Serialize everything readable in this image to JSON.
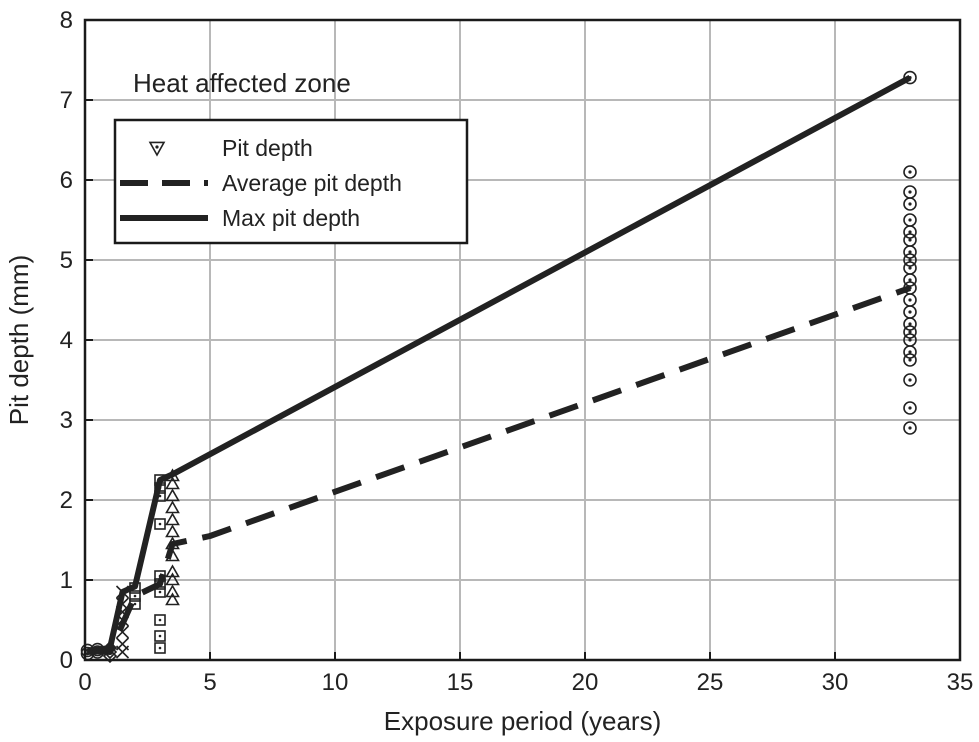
{
  "chart_data": {
    "type": "scatter",
    "title": "",
    "annotation": "Heat affected zone",
    "xlabel": "Exposure period (years)",
    "ylabel": "Pit depth (mm)",
    "xlim": [
      0,
      35
    ],
    "ylim": [
      0,
      8
    ],
    "xticks": [
      0,
      5,
      10,
      15,
      20,
      25,
      30,
      35
    ],
    "yticks": [
      0,
      1,
      2,
      3,
      4,
      5,
      6,
      7,
      8
    ],
    "grid": true,
    "legend_position": "upper-left",
    "legend": [
      {
        "label": "Pit depth",
        "style": "triangle-down-marker"
      },
      {
        "label": "Average pit depth",
        "style": "dashed-line"
      },
      {
        "label": "Max pit depth",
        "style": "solid-line"
      }
    ],
    "series": [
      {
        "name": "Pit depth",
        "kind": "scatter",
        "groups": [
          {
            "marker": "circle",
            "x": 0.1,
            "y": [
              0.08,
              0.12
            ]
          },
          {
            "marker": "circle",
            "x": 0.5,
            "y": [
              0.1,
              0.13
            ]
          },
          {
            "marker": "diamond",
            "x": 1.0,
            "y": [
              0.05,
              0.1,
              0.15
            ]
          },
          {
            "marker": "x",
            "x": 1.5,
            "y": [
              0.1,
              0.2,
              0.35,
              0.5,
              0.6,
              0.7,
              0.85
            ]
          },
          {
            "marker": "square",
            "x": 2.0,
            "y": [
              0.7,
              0.8,
              0.9
            ]
          },
          {
            "marker": "square",
            "x": 3.0,
            "y": [
              0.15,
              0.3,
              0.5,
              0.85,
              0.95,
              1.05,
              1.7,
              2.05,
              2.15,
              2.25
            ]
          },
          {
            "marker": "triangle",
            "x": 3.5,
            "y": [
              0.75,
              0.85,
              1.0,
              1.1,
              1.3,
              1.45,
              1.6,
              1.75,
              1.9,
              2.05,
              2.2,
              2.3
            ]
          },
          {
            "marker": "circle",
            "x": 33.0,
            "y": [
              2.9,
              3.15,
              3.5,
              3.75,
              3.85,
              4.0,
              4.1,
              4.2,
              4.35,
              4.5,
              4.65,
              4.75,
              4.9,
              5.0,
              5.1,
              5.25,
              5.35,
              5.5,
              5.7,
              5.85,
              6.1,
              7.28
            ]
          }
        ]
      },
      {
        "name": "Average pit depth",
        "kind": "line",
        "dash": "dashed",
        "x": [
          0.1,
          0.5,
          1.0,
          1.5,
          2.0,
          3.0,
          3.5,
          5.0,
          33.0
        ],
        "y": [
          0.1,
          0.11,
          0.1,
          0.45,
          0.8,
          0.95,
          1.45,
          1.55,
          4.65
        ]
      },
      {
        "name": "Max pit depth",
        "kind": "line",
        "dash": "solid",
        "x": [
          0.1,
          0.5,
          1.0,
          1.5,
          2.0,
          3.0,
          3.5,
          33.0
        ],
        "y": [
          0.12,
          0.13,
          0.15,
          0.85,
          0.92,
          2.25,
          2.32,
          7.28
        ]
      }
    ]
  }
}
